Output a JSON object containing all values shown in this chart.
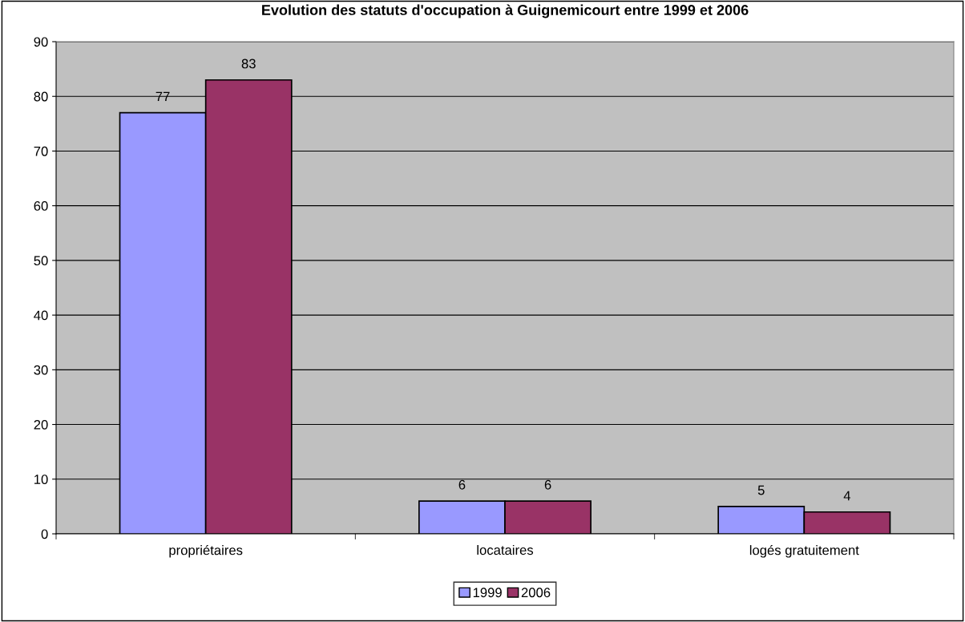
{
  "chart_data": {
    "type": "bar",
    "title": "Evolution des statuts d'occupation à Guignemicourt entre 1999 et 2006",
    "categories": [
      "propriétaires",
      "locataires",
      "logés gratuitement"
    ],
    "series": [
      {
        "name": "1999",
        "color": "#9999ff",
        "values": [
          77,
          6,
          5
        ]
      },
      {
        "name": "2006",
        "color": "#993366",
        "values": [
          83,
          6,
          4
        ]
      }
    ],
    "ylim": [
      0,
      90
    ],
    "yticks": [
      0,
      10,
      20,
      30,
      40,
      50,
      60,
      70,
      80,
      90
    ],
    "grid": "y",
    "legend": "bottom",
    "data_labels": true
  }
}
